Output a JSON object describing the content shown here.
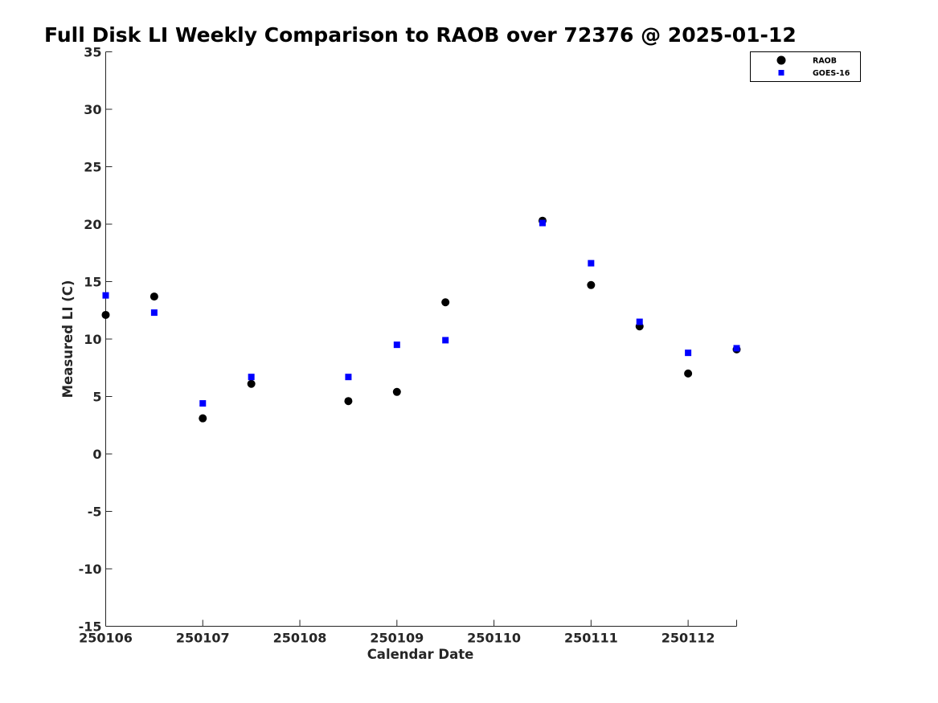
{
  "chart_data": {
    "type": "scatter",
    "title": "Full Disk LI Weekly Comparison to RAOB over 72376 @ 2025-01-12",
    "xlabel": "Calendar Date",
    "ylabel": "Measured LI (C)",
    "xticks": [
      "250106",
      "250107",
      "250108",
      "250109",
      "250110",
      "250111",
      "250112"
    ],
    "xlim": [
      0,
      6.5
    ],
    "ylim": [
      -15,
      35
    ],
    "yticks": [
      35,
      30,
      25,
      20,
      15,
      10,
      5,
      0,
      -5,
      -10,
      -15
    ],
    "ytick_labels": [
      "35",
      "30",
      "25",
      "20",
      "15",
      "10",
      "5",
      "0",
      "-5",
      "-10",
      "-15"
    ],
    "grid": false,
    "legend_position": "top-right",
    "series": [
      {
        "name": "RAOB",
        "marker": "circle",
        "color": "#000000",
        "x": [
          0,
          0.5,
          1,
          1.5,
          2.5,
          3,
          3.5,
          4.5,
          5,
          5.5,
          6,
          6.5
        ],
        "y": [
          12.1,
          13.7,
          3.1,
          6.1,
          4.6,
          5.4,
          13.2,
          20.3,
          14.7,
          11.1,
          7.0,
          9.1
        ]
      },
      {
        "name": "GOES-16",
        "marker": "square",
        "color": "#0000ff",
        "x": [
          0,
          0.5,
          1,
          1.5,
          2.5,
          3,
          3.5,
          4.5,
          5,
          5.5,
          6,
          6.5
        ],
        "y": [
          13.8,
          12.3,
          4.4,
          6.7,
          6.7,
          9.5,
          9.9,
          20.1,
          16.6,
          11.5,
          8.8,
          9.2
        ]
      }
    ]
  }
}
